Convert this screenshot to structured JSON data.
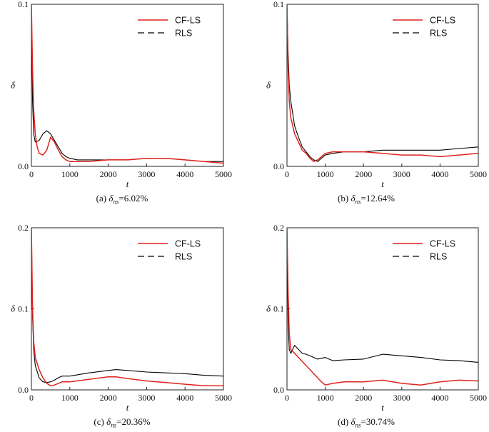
{
  "chart_data": [
    {
      "type": "line",
      "caption": {
        "prefix": "(a) ",
        "symbol": "δ",
        "subscript": "ns",
        "value": "=6.02%"
      },
      "xlabel": "t",
      "ylabel": "δ",
      "xlim": [
        0,
        5000
      ],
      "ylim": [
        0,
        0.1
      ],
      "xticks": [
        0,
        1000,
        2000,
        3000,
        4000,
        5000
      ],
      "yticks": [
        0.0,
        0.1
      ],
      "ytick_labels": [
        "0.0",
        "0.1"
      ],
      "legend": {
        "position": "top-right"
      },
      "series": [
        {
          "name": "CF-LS",
          "color": "#e0231c",
          "style": "solid",
          "x": [
            0,
            30,
            60,
            100,
            150,
            200,
            300,
            400,
            500,
            600,
            700,
            800,
            900,
            1000,
            1200,
            1500,
            2000,
            2500,
            3000,
            3500,
            4000,
            4500,
            5000
          ],
          "y": [
            0.1,
            0.06,
            0.035,
            0.02,
            0.012,
            0.008,
            0.007,
            0.01,
            0.018,
            0.015,
            0.01,
            0.006,
            0.004,
            0.003,
            0.003,
            0.003,
            0.004,
            0.004,
            0.005,
            0.005,
            0.004,
            0.003,
            0.002
          ]
        },
        {
          "name": "RLS",
          "color": "#000000",
          "style": "dashed",
          "x": [
            0,
            30,
            60,
            100,
            200,
            300,
            400,
            500,
            600,
            700,
            800,
            900,
            1000,
            1200,
            1500,
            2000,
            2500,
            3000,
            3500,
            4000,
            4500,
            5000
          ],
          "y": [
            0.1,
            0.04,
            0.02,
            0.015,
            0.016,
            0.02,
            0.022,
            0.02,
            0.016,
            0.012,
            0.008,
            0.006,
            0.005,
            0.004,
            0.004,
            0.004,
            0.004,
            0.005,
            0.005,
            0.004,
            0.003,
            0.003
          ]
        }
      ]
    },
    {
      "type": "line",
      "caption": {
        "prefix": "(b) ",
        "symbol": "δ",
        "subscript": "ns",
        "value": "=12.64%"
      },
      "xlabel": "t",
      "ylabel": "δ",
      "xlim": [
        0,
        5000
      ],
      "ylim": [
        0,
        0.1
      ],
      "xticks": [
        0,
        1000,
        2000,
        3000,
        4000,
        5000
      ],
      "yticks": [
        0.0,
        0.1
      ],
      "ytick_labels": [
        "0.0",
        "0.1"
      ],
      "legend": {
        "position": "top-right"
      },
      "series": [
        {
          "name": "CF-LS",
          "color": "#e0231c",
          "style": "solid",
          "x": [
            0,
            30,
            60,
            100,
            200,
            300,
            400,
            500,
            600,
            700,
            800,
            900,
            1000,
            1200,
            1500,
            2000,
            2500,
            3000,
            3500,
            4000,
            4500,
            5000
          ],
          "y": [
            0.1,
            0.06,
            0.04,
            0.03,
            0.02,
            0.015,
            0.01,
            0.008,
            0.005,
            0.003,
            0.004,
            0.006,
            0.008,
            0.009,
            0.009,
            0.009,
            0.008,
            0.007,
            0.007,
            0.006,
            0.007,
            0.008
          ]
        },
        {
          "name": "RLS",
          "color": "#000000",
          "style": "dashed",
          "x": [
            0,
            30,
            60,
            100,
            200,
            300,
            400,
            500,
            600,
            700,
            800,
            900,
            1000,
            1200,
            1500,
            2000,
            2500,
            3000,
            3500,
            4000,
            4500,
            5000
          ],
          "y": [
            0.1,
            0.07,
            0.05,
            0.04,
            0.025,
            0.018,
            0.012,
            0.009,
            0.006,
            0.004,
            0.003,
            0.005,
            0.007,
            0.008,
            0.009,
            0.009,
            0.01,
            0.01,
            0.01,
            0.01,
            0.011,
            0.012
          ]
        }
      ]
    },
    {
      "type": "line",
      "caption": {
        "prefix": "(c) ",
        "symbol": "δ",
        "subscript": "ns",
        "value": "=20.36%"
      },
      "xlabel": "t",
      "ylabel": "δ",
      "xlim": [
        0,
        5000
      ],
      "ylim": [
        0,
        0.2
      ],
      "xticks": [
        0,
        1000,
        2000,
        3000,
        4000,
        5000
      ],
      "yticks": [
        0.0,
        0.1,
        0.2
      ],
      "ytick_labels": [
        "0.0",
        "0.1",
        "0.2"
      ],
      "legend": {
        "position": "top-right"
      },
      "series": [
        {
          "name": "CF-LS",
          "color": "#e0231c",
          "style": "solid",
          "x": [
            0,
            30,
            60,
            100,
            200,
            300,
            400,
            500,
            600,
            700,
            800,
            1000,
            1500,
            2000,
            2200,
            2500,
            3000,
            3500,
            4000,
            4500,
            5000
          ],
          "y": [
            0.2,
            0.1,
            0.06,
            0.04,
            0.025,
            0.015,
            0.008,
            0.005,
            0.006,
            0.008,
            0.01,
            0.01,
            0.013,
            0.016,
            0.016,
            0.014,
            0.011,
            0.009,
            0.007,
            0.005,
            0.005
          ]
        },
        {
          "name": "RLS",
          "color": "#000000",
          "style": "dashed",
          "x": [
            0,
            30,
            60,
            100,
            200,
            300,
            400,
            500,
            600,
            700,
            800,
            1000,
            1500,
            2000,
            2200,
            2500,
            3000,
            3500,
            4000,
            4500,
            5000
          ],
          "y": [
            0.2,
            0.09,
            0.05,
            0.03,
            0.015,
            0.01,
            0.009,
            0.01,
            0.012,
            0.015,
            0.017,
            0.017,
            0.021,
            0.024,
            0.025,
            0.024,
            0.022,
            0.021,
            0.02,
            0.018,
            0.017
          ]
        }
      ]
    },
    {
      "type": "line",
      "caption": {
        "prefix": "(d) ",
        "symbol": "δ",
        "subscript": "ns",
        "value": "=30.74%"
      },
      "xlabel": "t",
      "ylabel": "δ",
      "xlim": [
        0,
        5000
      ],
      "ylim": [
        0,
        0.2
      ],
      "xticks": [
        0,
        1000,
        2000,
        3000,
        4000,
        5000
      ],
      "yticks": [
        0.0,
        0.1,
        0.2
      ],
      "ytick_labels": [
        "0.0",
        "0.1",
        "0.2"
      ],
      "legend": {
        "position": "top-right"
      },
      "series": [
        {
          "name": "CF-LS",
          "color": "#e0231c",
          "style": "solid",
          "x": [
            0,
            30,
            60,
            100,
            200,
            300,
            400,
            500,
            600,
            700,
            800,
            900,
            1000,
            1200,
            1500,
            2000,
            2500,
            3000,
            3500,
            4000,
            4500,
            5000
          ],
          "y": [
            0.2,
            0.12,
            0.07,
            0.05,
            0.045,
            0.04,
            0.035,
            0.03,
            0.025,
            0.02,
            0.015,
            0.01,
            0.006,
            0.008,
            0.01,
            0.01,
            0.012,
            0.008,
            0.006,
            0.01,
            0.012,
            0.011
          ]
        },
        {
          "name": "RLS",
          "color": "#000000",
          "style": "dashed",
          "x": [
            0,
            30,
            60,
            100,
            200,
            300,
            400,
            500,
            600,
            700,
            800,
            1000,
            1200,
            1500,
            2000,
            2500,
            3000,
            3500,
            4000,
            4500,
            5000
          ],
          "y": [
            0.2,
            0.08,
            0.05,
            0.045,
            0.055,
            0.05,
            0.045,
            0.044,
            0.042,
            0.04,
            0.038,
            0.04,
            0.036,
            0.037,
            0.038,
            0.044,
            0.042,
            0.04,
            0.037,
            0.036,
            0.034
          ]
        }
      ]
    }
  ]
}
